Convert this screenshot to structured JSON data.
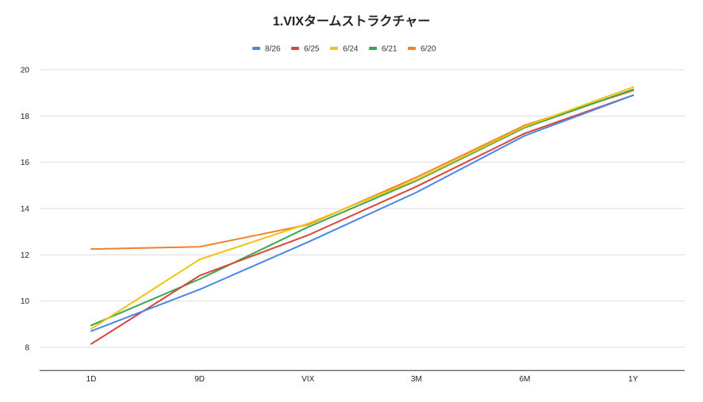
{
  "chart_data": {
    "type": "line",
    "title": "1.VIXタームストラクチャー",
    "xlabel": "",
    "ylabel": "",
    "categories": [
      "1D",
      "9D",
      "VIX",
      "3M",
      "6M",
      "1Y"
    ],
    "ylim": [
      7,
      20
    ],
    "yticks": [
      "8",
      "10",
      "12",
      "14",
      "16",
      "18",
      "20"
    ],
    "grid": true,
    "legend_position": "top",
    "series": [
      {
        "name": "8/26",
        "color": "#4a86e8",
        "values": [
          8.7,
          10.5,
          12.55,
          14.7,
          17.15,
          18.9
        ]
      },
      {
        "name": "6/25",
        "color": "#db4437",
        "values": [
          8.15,
          11.1,
          12.85,
          14.95,
          17.25,
          18.9
        ]
      },
      {
        "name": "6/24",
        "color": "#f4c20d",
        "values": [
          8.8,
          11.8,
          13.35,
          15.25,
          17.55,
          19.25
        ]
      },
      {
        "name": "6/21",
        "color": "#3aa757",
        "values": [
          8.95,
          10.95,
          13.2,
          15.2,
          17.5,
          19.15
        ]
      },
      {
        "name": "6/20",
        "color": "#f2812a",
        "values": [
          12.25,
          12.35,
          13.3,
          15.35,
          17.6,
          19.1
        ]
      }
    ]
  }
}
